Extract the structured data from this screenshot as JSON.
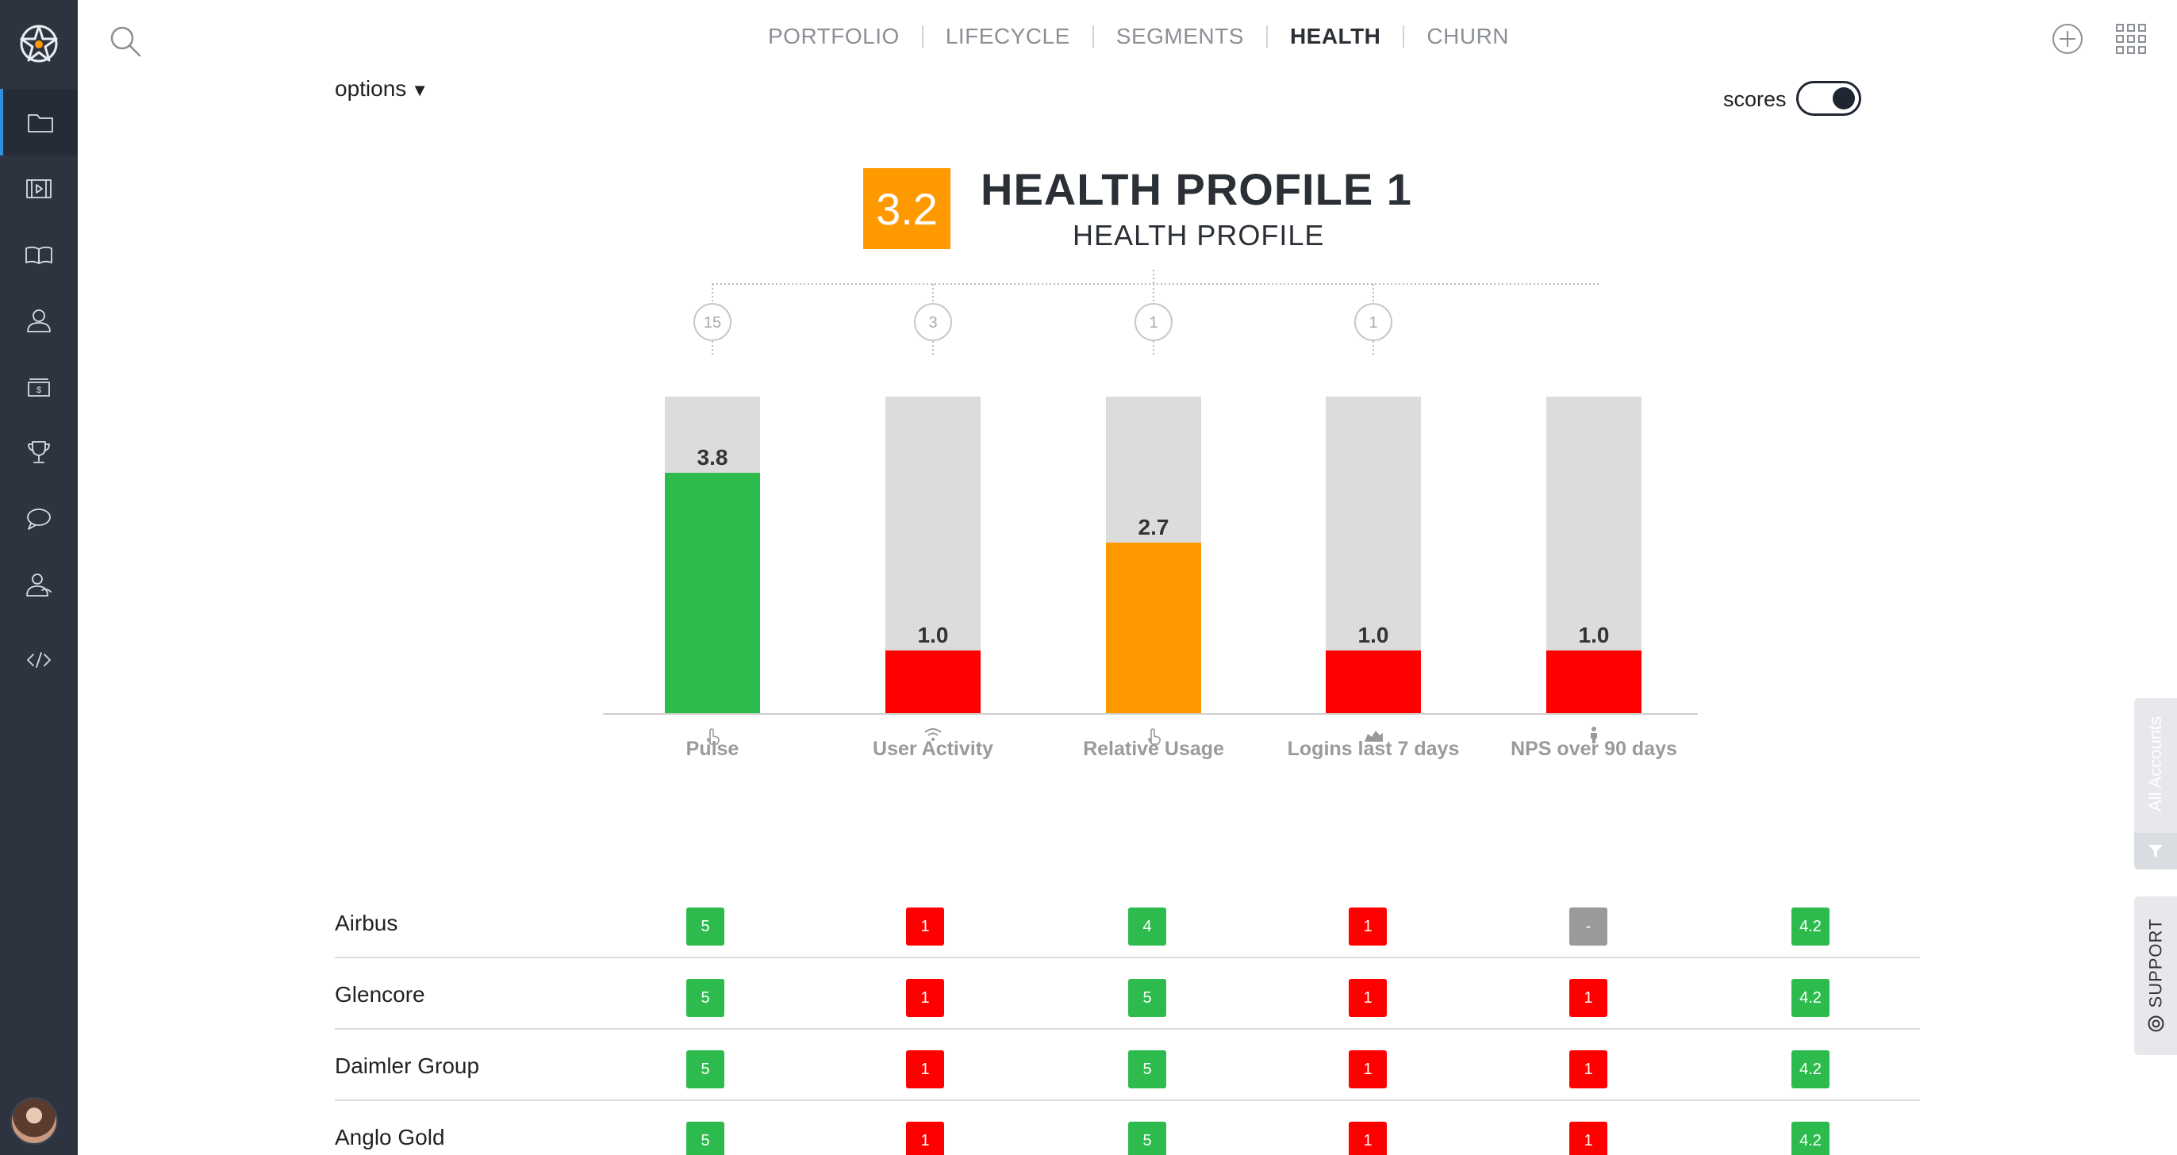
{
  "nav": {
    "tabs": [
      {
        "label": "PORTFOLIO",
        "active": false
      },
      {
        "label": "LIFECYCLE",
        "active": false
      },
      {
        "label": "SEGMENTS",
        "active": false
      },
      {
        "label": "HEALTH",
        "active": true
      },
      {
        "label": "CHURN",
        "active": false
      }
    ]
  },
  "sidebar": {
    "items": [
      {
        "icon": "folder-icon",
        "active": true
      },
      {
        "icon": "film-icon",
        "active": false
      },
      {
        "icon": "book-icon",
        "active": false
      },
      {
        "icon": "user-icon",
        "active": false
      },
      {
        "icon": "cash-icon",
        "active": false
      },
      {
        "icon": "trophy-icon",
        "active": false
      },
      {
        "icon": "chat-icon",
        "active": false
      },
      {
        "icon": "customer-icon",
        "active": false
      },
      {
        "icon": "code-icon",
        "active": false
      }
    ]
  },
  "options": {
    "label": "options",
    "caret": "▼"
  },
  "scores": {
    "label": "scores",
    "enabled": true
  },
  "profile": {
    "score": "3.2",
    "title": "HEALTH PROFILE 1",
    "subtitle": "HEALTH PROFILE",
    "score_color": "#ff9900"
  },
  "chart_data": {
    "type": "bar",
    "stacked_background": true,
    "ylim": [
      0,
      5
    ],
    "categories": [
      "Pulse",
      "User Activity",
      "Relative Usage",
      "Logins last 7 days",
      "NPS over 90 days"
    ],
    "weights": [
      "15",
      "3",
      "1",
      "1",
      ""
    ],
    "values": [
      3.8,
      1.0,
      2.7,
      1.0,
      1.0
    ],
    "value_labels": [
      "3.8",
      "1.0",
      "2.7",
      "1.0",
      "1.0"
    ],
    "colors": [
      "#2dbb4e",
      "#ff0000",
      "#ff9900",
      "#ff0000",
      "#ff0000"
    ],
    "icons": [
      "hand-icon",
      "wifi-icon",
      "hand-icon",
      "area-chart-icon",
      "person-icon"
    ],
    "background_color": "#dcdcdc"
  },
  "table": {
    "rows": [
      {
        "name": "Airbus",
        "cells": [
          {
            "value": "5",
            "color": "#2dbb4e"
          },
          {
            "value": "1",
            "color": "#ff0000"
          },
          {
            "value": "4",
            "color": "#2dbb4e"
          },
          {
            "value": "1",
            "color": "#ff0000"
          },
          {
            "value": "-",
            "color": "#9a9a9a"
          },
          {
            "value": "4.2",
            "color": "#2dbb4e"
          }
        ]
      },
      {
        "name": "Glencore",
        "cells": [
          {
            "value": "5",
            "color": "#2dbb4e"
          },
          {
            "value": "1",
            "color": "#ff0000"
          },
          {
            "value": "5",
            "color": "#2dbb4e"
          },
          {
            "value": "1",
            "color": "#ff0000"
          },
          {
            "value": "1",
            "color": "#ff0000"
          },
          {
            "value": "4.2",
            "color": "#2dbb4e"
          }
        ]
      },
      {
        "name": "Daimler Group",
        "cells": [
          {
            "value": "5",
            "color": "#2dbb4e"
          },
          {
            "value": "1",
            "color": "#ff0000"
          },
          {
            "value": "5",
            "color": "#2dbb4e"
          },
          {
            "value": "1",
            "color": "#ff0000"
          },
          {
            "value": "1",
            "color": "#ff0000"
          },
          {
            "value": "4.2",
            "color": "#2dbb4e"
          }
        ]
      },
      {
        "name": "Anglo Gold",
        "cells": [
          {
            "value": "5",
            "color": "#2dbb4e"
          },
          {
            "value": "1",
            "color": "#ff0000"
          },
          {
            "value": "5",
            "color": "#2dbb4e"
          },
          {
            "value": "1",
            "color": "#ff0000"
          },
          {
            "value": "1",
            "color": "#ff0000"
          },
          {
            "value": "4.2",
            "color": "#2dbb4e"
          }
        ]
      }
    ]
  },
  "side_tabs": {
    "all_accounts": "All Accounts",
    "support": "SUPPORT"
  }
}
